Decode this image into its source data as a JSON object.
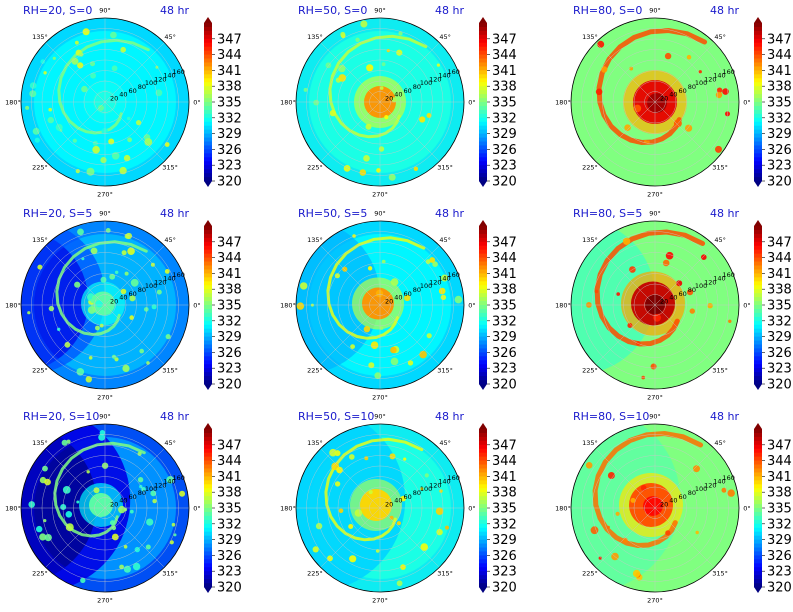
{
  "chart_data": {
    "type": "polar-heatmap",
    "grid": true,
    "colormap": "jet",
    "colorbar": {
      "ticks": [
        "347",
        "344",
        "341",
        "338",
        "335",
        "332",
        "329",
        "326",
        "323",
        "320"
      ],
      "vmin": 320,
      "vmax": 350,
      "extend": "both"
    },
    "angle_ticks": [
      "90°",
      "45°",
      "0°",
      "315°",
      "270°",
      "225°",
      "180°",
      "135°"
    ],
    "radius_ticks": [
      "20",
      "40",
      "60",
      "80",
      "100",
      "120",
      "140",
      "160"
    ],
    "panels": [
      {
        "title": "RH=20, S=0",
        "time": "48 hr",
        "rh": 20,
        "shear": 0,
        "base": 331,
        "inner": 332,
        "outer": 329,
        "spots": 335
      },
      {
        "title": "RH=50, S=0",
        "time": "48 hr",
        "rh": 50,
        "shear": 0,
        "base": 332,
        "inner": 342,
        "outer": 330,
        "spots": 337
      },
      {
        "title": "RH=80, S=0",
        "time": "48 hr",
        "rh": 80,
        "shear": 0,
        "base": 335,
        "inner": 347,
        "outer": 333,
        "spots": 344
      },
      {
        "title": "RH=20, S=5",
        "time": "48 hr",
        "rh": 20,
        "shear": 5,
        "base": 329,
        "inner": 334,
        "outer": 326,
        "spots": 335
      },
      {
        "title": "RH=50, S=5",
        "time": "48 hr",
        "rh": 50,
        "shear": 5,
        "base": 331,
        "inner": 342,
        "outer": 329,
        "spots": 338
      },
      {
        "title": "RH=80, S=5",
        "time": "48 hr",
        "rh": 80,
        "shear": 5,
        "base": 335,
        "inner": 348,
        "outer": 333,
        "spots": 344
      },
      {
        "title": "RH=20, S=10",
        "time": "48 hr",
        "rh": 20,
        "shear": 10,
        "base": 328,
        "inner": 334,
        "outer": 323,
        "spots": 335
      },
      {
        "title": "RH=50, S=10",
        "time": "48 hr",
        "rh": 50,
        "shear": 10,
        "base": 332,
        "inner": 340,
        "outer": 330,
        "spots": 338
      },
      {
        "title": "RH=80, S=10",
        "time": "48 hr",
        "rh": 80,
        "shear": 10,
        "base": 335,
        "inner": 344,
        "outer": 334,
        "spots": 343
      }
    ]
  }
}
